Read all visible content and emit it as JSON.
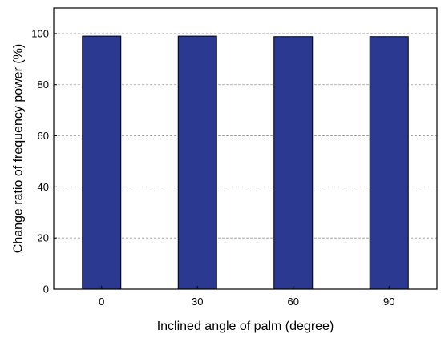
{
  "chart_data": {
    "type": "bar",
    "categories": [
      "0",
      "30",
      "60",
      "90"
    ],
    "values": [
      99,
      99,
      98.8,
      98.8
    ],
    "xlabel": "Inclined angle of palm (degree)",
    "ylabel": "Change ratio of frequency power (%)",
    "ylim": [
      0,
      110
    ],
    "yticks": [
      0,
      20,
      40,
      60,
      80,
      100
    ],
    "grid": "horizontal dashed at major y ticks",
    "legend": "none",
    "colors": {
      "bar_fill": "#2b3990",
      "bar_edge": "#000000",
      "grid": "#9a9a9a",
      "axis": "#000000"
    }
  }
}
